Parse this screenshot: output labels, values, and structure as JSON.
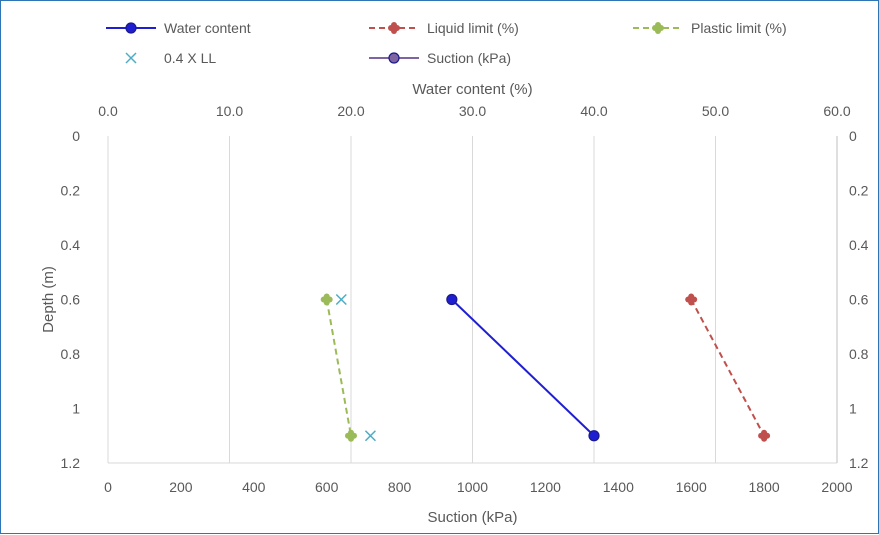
{
  "chart_data": {
    "type": "scatter",
    "title": "",
    "top_axis": {
      "label": "Water content (%)",
      "min": 0,
      "max": 60,
      "ticks": [
        "0.0",
        "10.0",
        "20.0",
        "30.0",
        "40.0",
        "50.0",
        "60.0"
      ]
    },
    "bottom_axis": {
      "label": "Suction (kPa)",
      "min": 0,
      "max": 2000,
      "ticks": [
        "0",
        "200",
        "400",
        "600",
        "800",
        "1000",
        "1200",
        "1400",
        "1600",
        "1800",
        "2000"
      ]
    },
    "y_axis": {
      "label": "Depth (m)",
      "min": 0,
      "max": 1.2,
      "reversed": true,
      "ticks": [
        "0",
        "0.2",
        "0.4",
        "0.6",
        "0.8",
        "1",
        "1.2"
      ]
    },
    "grid": "vertical",
    "legend_position": "top",
    "series": [
      {
        "name": "Water content",
        "axis": "top",
        "color": "#1f1fd1",
        "line": "solid",
        "marker": "circle",
        "points": [
          {
            "x": 28.3,
            "y": 0.6
          },
          {
            "x": 40.0,
            "y": 1.1
          }
        ]
      },
      {
        "name": "Liquid limit (%)",
        "axis": "top",
        "color": "#c0504d",
        "line": "dashed",
        "marker": "flower",
        "points": [
          {
            "x": 48.0,
            "y": 0.6
          },
          {
            "x": 54.0,
            "y": 1.1
          }
        ]
      },
      {
        "name": "Plastic limit (%)",
        "axis": "top",
        "color": "#9bbb59",
        "line": "dashed",
        "marker": "flower",
        "points": [
          {
            "x": 18.0,
            "y": 0.6
          },
          {
            "x": 20.0,
            "y": 1.1
          }
        ]
      },
      {
        "name": "0.4 X LL",
        "axis": "top",
        "color": "#4bacc6",
        "line": "none",
        "marker": "x",
        "points": [
          {
            "x": 19.2,
            "y": 0.6
          },
          {
            "x": 21.6,
            "y": 1.1
          }
        ]
      },
      {
        "name": "Suction (kPa)",
        "axis": "bottom",
        "color": "#8064a2",
        "line": "solid",
        "marker": "circle",
        "points": []
      }
    ]
  }
}
